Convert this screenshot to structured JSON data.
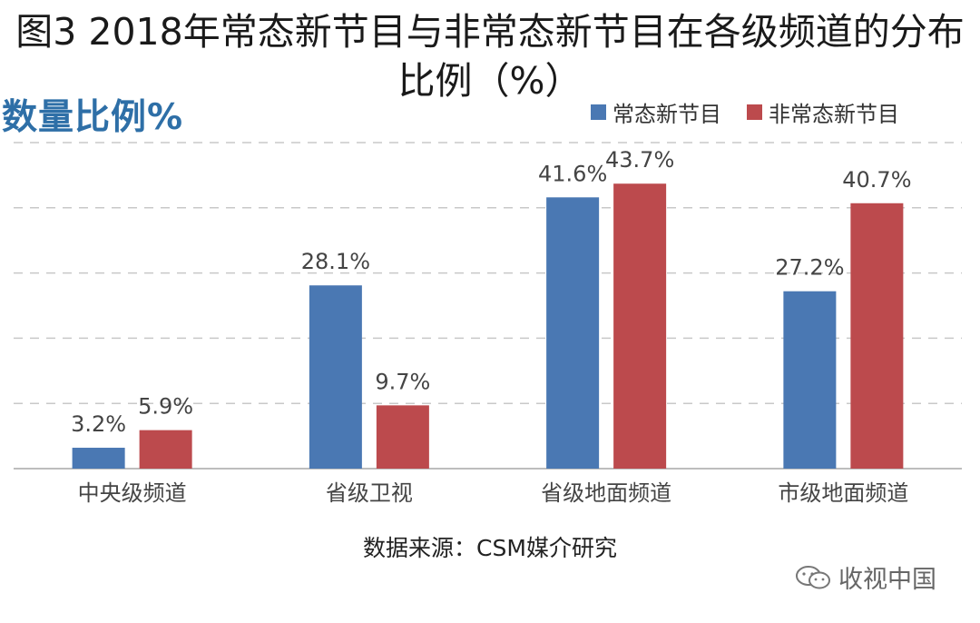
{
  "title": "图3  2018年常态新节目与非常态新节目在各级频道的分布比例（%）",
  "watermark": "收视中国",
  "chart_data": {
    "type": "bar",
    "title": "图3  2018年常态新节目与非常态新节目在各级频道的分布比例（%）",
    "ylabel": "数量比例%",
    "xlabel": "",
    "categories": [
      "中央级频道",
      "省级卫视",
      "省级地面频道",
      "市级地面频道"
    ],
    "series": [
      {
        "name": "常态新节目",
        "values": [
          3.2,
          28.1,
          41.6,
          27.2
        ],
        "color": "#4a78b3",
        "labels": [
          "3.2%",
          "28.1%",
          "41.6%",
          "27.2%"
        ]
      },
      {
        "name": "非常态新节目",
        "values": [
          5.9,
          9.7,
          43.7,
          40.7
        ],
        "color": "#bc4a4d",
        "labels": [
          "5.9%",
          "9.7%",
          "43.7%",
          "40.7%"
        ]
      }
    ],
    "ylim": [
      0,
      50
    ],
    "grid": true,
    "legend": "top-right",
    "source": "数据来源：CSM媒介研究"
  }
}
